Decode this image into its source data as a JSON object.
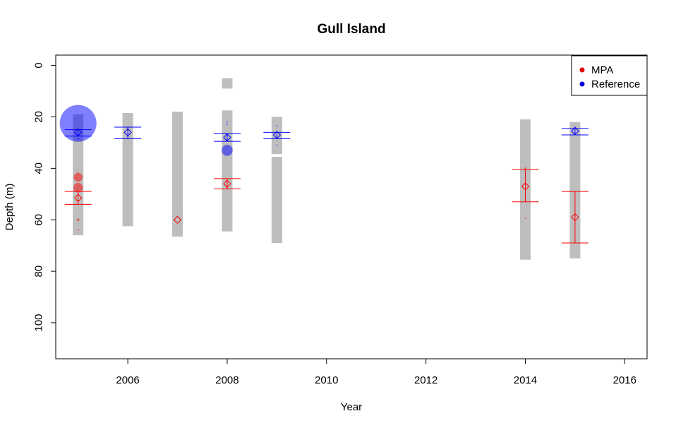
{
  "chart_data": {
    "type": "scatter",
    "title": "Gull Island",
    "xlabel": "Year",
    "ylabel": "Depth (m)",
    "xlim": [
      2004.55,
      2016.45
    ],
    "ylim": [
      114,
      -4
    ],
    "y_reversed": true,
    "x_ticks": [
      "2006",
      "2008",
      "2010",
      "2012",
      "2014",
      "2016"
    ],
    "y_ticks": [
      "0",
      "20",
      "40",
      "60",
      "80",
      "100"
    ],
    "legend": {
      "placement": "top-right",
      "entries": [
        {
          "label": "MPA",
          "color": "#e00000"
        },
        {
          "label": "Reference",
          "color": "#0000e0"
        }
      ]
    },
    "colors": {
      "mpa": "#ff0000",
      "reference": "#0000ff",
      "range_bar": "#bebebe"
    },
    "depth_ranges": [
      {
        "year": 2005,
        "segments": [
          [
            19,
            66
          ]
        ]
      },
      {
        "year": 2006,
        "segments": [
          [
            18.5,
            62.5
          ]
        ]
      },
      {
        "year": 2007,
        "segments": [
          [
            18,
            66.5
          ]
        ]
      },
      {
        "year": 2008,
        "segments": [
          [
            5,
            9
          ],
          [
            17.5,
            64.5
          ]
        ]
      },
      {
        "year": 2009,
        "segments": [
          [
            20,
            34.5
          ],
          [
            35.5,
            69
          ]
        ]
      },
      {
        "year": 2014,
        "segments": [
          [
            21,
            75.5
          ]
        ]
      },
      {
        "year": 2015,
        "segments": [
          [
            22,
            75
          ]
        ]
      }
    ],
    "series": [
      {
        "name": "MPA",
        "means": [
          {
            "year": 2005,
            "mean": 51.5,
            "ci": [
              49,
              54
            ]
          },
          {
            "year": 2007,
            "mean": 60
          },
          {
            "year": 2008,
            "mean": 46,
            "ci": [
              44,
              48
            ]
          },
          {
            "year": 2014,
            "mean": 47,
            "ci": [
              40.5,
              53
            ]
          },
          {
            "year": 2015,
            "mean": 59,
            "ci": [
              49,
              69
            ]
          }
        ],
        "points": [
          {
            "year": 2005,
            "depth": 43.5,
            "size": 2.4
          },
          {
            "year": 2005,
            "depth": 47.5,
            "size": 2.6
          },
          {
            "year": 2005,
            "depth": 41.5,
            "size": 0.4
          },
          {
            "year": 2005,
            "depth": 60,
            "size": 0.7
          },
          {
            "year": 2005,
            "depth": 64,
            "size": 0.4
          },
          {
            "year": 2008,
            "depth": 48,
            "size": 0.4
          },
          {
            "year": 2014,
            "depth": 40,
            "size": 0.5
          },
          {
            "year": 2014,
            "depth": 59.5,
            "size": 0.4
          }
        ]
      },
      {
        "name": "Reference",
        "means": [
          {
            "year": 2005,
            "mean": 26,
            "ci": [
              25,
              27.5
            ]
          },
          {
            "year": 2006,
            "mean": 26,
            "ci": [
              24,
              28.5
            ]
          },
          {
            "year": 2008,
            "mean": 28,
            "ci": [
              26.5,
              29.5
            ]
          },
          {
            "year": 2009,
            "mean": 27,
            "ci": [
              26,
              28.5
            ]
          },
          {
            "year": 2015,
            "mean": 25.5,
            "ci": [
              24.5,
              27
            ]
          }
        ],
        "points": [
          {
            "year": 2005,
            "depth": 22.5,
            "size": 10
          },
          {
            "year": 2005,
            "depth": 28.5,
            "size": 0.5
          },
          {
            "year": 2008,
            "depth": 33,
            "size": 3
          },
          {
            "year": 2008,
            "depth": 22,
            "size": 0.4
          },
          {
            "year": 2008,
            "depth": 23,
            "size": 0.4
          },
          {
            "year": 2009,
            "depth": 23.5,
            "size": 0.4
          },
          {
            "year": 2009,
            "depth": 31,
            "size": 0.4
          },
          {
            "year": 2015,
            "depth": 24,
            "size": 0.4
          }
        ]
      }
    ]
  }
}
